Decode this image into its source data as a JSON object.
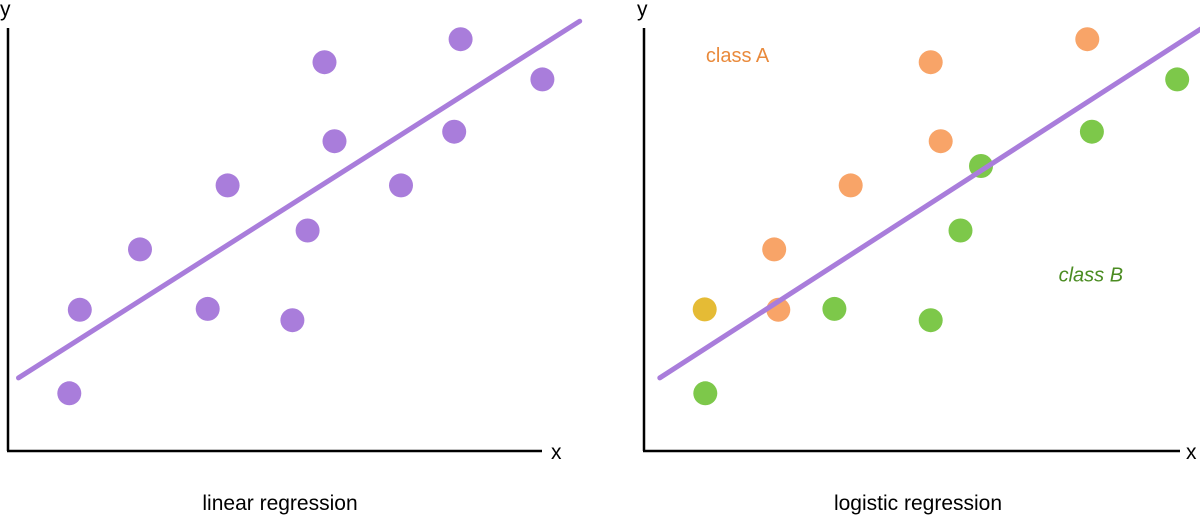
{
  "chart_data": [
    {
      "type": "scatter",
      "title": "linear regression",
      "xlabel": "x",
      "ylabel": "y",
      "xlim": [
        0,
        100
      ],
      "ylim": [
        0,
        100
      ],
      "grid": false,
      "series": [
        {
          "color": "#a97ddb",
          "points": [
            [
              10.5,
              12.8
            ],
            [
              12.3,
              31.3
            ],
            [
              22.6,
              44.7
            ],
            [
              34.2,
              31.5
            ],
            [
              37.6,
              58.9
            ],
            [
              48.7,
              29.0
            ],
            [
              51.3,
              48.9
            ],
            [
              55.9,
              68.7
            ],
            [
              54.2,
              86.2
            ],
            [
              67.3,
              58.9
            ],
            [
              76.4,
              70.8
            ],
            [
              77.5,
              91.3
            ],
            [
              91.5,
              82.4
            ]
          ]
        }
      ],
      "fit_line": {
        "color": "#a97ddb",
        "from": [
          1.8,
          16.2
        ],
        "to": [
          97.9,
          95.3
        ]
      }
    },
    {
      "type": "scatter",
      "title": "logistic regression",
      "xlabel": "x",
      "ylabel": "y",
      "xlim": [
        0,
        100
      ],
      "ylim": [
        0,
        100
      ],
      "grid": false,
      "annotations": [
        {
          "text": "class A",
          "color": "#e98a3c",
          "italic": false,
          "at": [
            10.6,
            86.2
          ]
        },
        {
          "text": "class B",
          "color": "#4b8c22",
          "italic": true,
          "at": [
            71.0,
            37.6
          ]
        }
      ],
      "series": [
        {
          "color": "#f8a468",
          "points": [
            [
              22.3,
              44.7
            ],
            [
              35.4,
              58.9
            ],
            [
              50.8,
              68.7
            ],
            [
              49.1,
              86.2
            ],
            [
              75.9,
              91.3
            ],
            [
              23.0,
              31.3
            ]
          ]
        },
        {
          "color": "#7dc84a",
          "points": [
            [
              10.5,
              12.8
            ],
            [
              32.6,
              31.5
            ],
            [
              49.1,
              29.0
            ],
            [
              54.2,
              48.9
            ],
            [
              57.7,
              63.2
            ],
            [
              76.7,
              70.8
            ],
            [
              91.3,
              82.4
            ]
          ]
        },
        {
          "color": "#e5bb35",
          "points": [
            [
              10.4,
              31.4
            ]
          ]
        }
      ],
      "fit_line": {
        "color": "#a97ddb",
        "from": [
          2.7,
          16.2
        ],
        "to": [
          97.4,
          95.3
        ]
      }
    }
  ]
}
